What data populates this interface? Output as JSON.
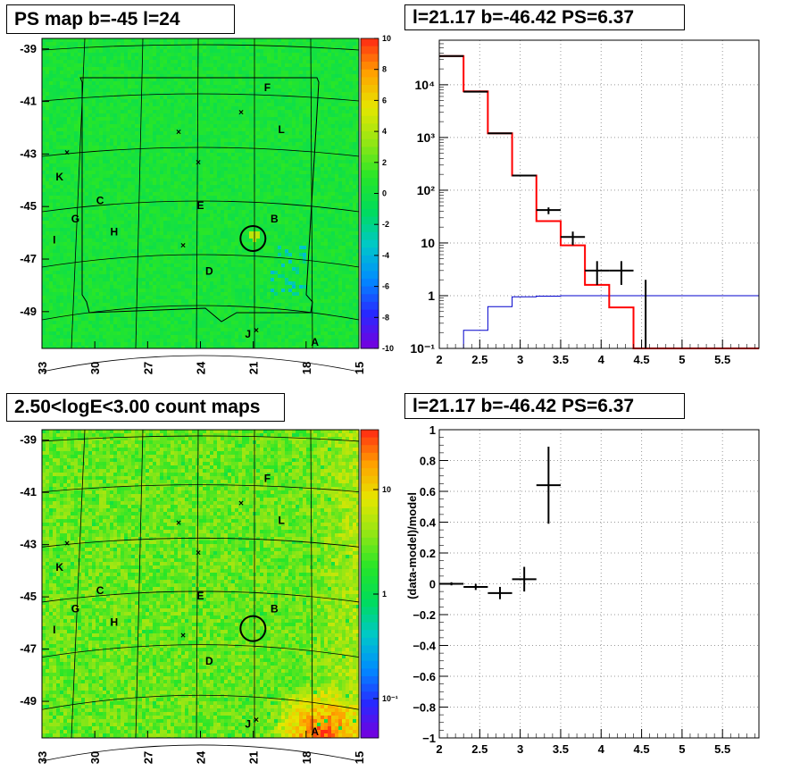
{
  "panels": {
    "map1": {
      "title": "PS map b=-45 l=24",
      "yticks": [
        "-39",
        "-41",
        "-43",
        "-45",
        "-47",
        "-49"
      ],
      "xticks": [
        "33",
        "30",
        "27",
        "24",
        "21",
        "18",
        "15"
      ],
      "colorbar_ticks": [
        "10",
        "8",
        "6",
        "4",
        "2",
        "0",
        "-2",
        "-4",
        "-6",
        "-8",
        "-10"
      ]
    },
    "map2": {
      "title": "2.50<logE<3.00 count maps",
      "yticks": [
        "-39",
        "-41",
        "-43",
        "-45",
        "-47",
        "-49"
      ],
      "xticks": [
        "33",
        "30",
        "27",
        "24",
        "21",
        "18",
        "15"
      ],
      "colorbar_ticks": [
        "10",
        "1",
        "10⁻¹"
      ]
    },
    "spectrum": {
      "title": "l=21.17 b=-46.42 PS=6.37"
    },
    "residual": {
      "title": "l=21.17 b=-46.42 PS=6.37"
    }
  },
  "source_labels": [
    "F",
    "L",
    "K",
    "C",
    "E",
    "B",
    "G",
    "H",
    "I",
    "D",
    "J",
    "A"
  ],
  "colors": {
    "data": "#000000",
    "model": "#ff0000",
    "background": "#0000cc",
    "grid": "#aaaaaa"
  },
  "chart_data": [
    {
      "type": "heatmap",
      "title": "PS map b=-45 l=24",
      "xlabel": "",
      "ylabel": "",
      "xlim": [
        33,
        15
      ],
      "ylim": [
        -50.4,
        -38.6
      ],
      "zlim": [
        -10,
        10
      ],
      "sources": [
        {
          "label": "F",
          "l": 20.2,
          "b": -40.6
        },
        {
          "label": "L",
          "l": 19.4,
          "b": -42.2
        },
        {
          "label": "K",
          "l": 32.0,
          "b": -44.0
        },
        {
          "label": "C",
          "l": 29.7,
          "b": -44.9
        },
        {
          "label": "E",
          "l": 24.0,
          "b": -45.1
        },
        {
          "label": "B",
          "l": 19.8,
          "b": -45.6
        },
        {
          "label": "G",
          "l": 31.1,
          "b": -45.6
        },
        {
          "label": "H",
          "l": 28.9,
          "b": -46.1
        },
        {
          "label": "I",
          "l": 32.3,
          "b": -46.4
        },
        {
          "label": "D",
          "l": 23.5,
          "b": -47.6
        },
        {
          "label": "J",
          "l": 21.3,
          "b": -50.0
        },
        {
          "label": "A",
          "l": 17.5,
          "b": -50.3
        }
      ]
    },
    {
      "type": "bar",
      "title": "l=21.17 b=-46.42 PS=6.37",
      "xlabel": "",
      "ylabel": "",
      "xlim": [
        2,
        6
      ],
      "ylim": [
        0.1,
        70000
      ],
      "ylog": true,
      "grid": true,
      "bin_edges": [
        2.0,
        2.3,
        2.6,
        2.9,
        3.2,
        3.5,
        3.8,
        4.1,
        4.4,
        6.0
      ],
      "series": [
        {
          "values": [
            35000,
            7500,
            1200,
            190,
            26,
            9,
            1.6,
            0.6,
            0.1
          ]
        },
        {
          "values": [
            0.1,
            0.22,
            0.62,
            0.95,
            0.98,
            1.0,
            1.0,
            1.0,
            1.0
          ]
        }
      ],
      "points": [
        {
          "x": 2.15,
          "y": 35000,
          "xerr": 0.15,
          "yerr": 0
        },
        {
          "x": 2.45,
          "y": 7400,
          "xerr": 0.15,
          "yerr": 0
        },
        {
          "x": 2.75,
          "y": 1200,
          "xerr": 0.15,
          "yerr": 0
        },
        {
          "x": 3.05,
          "y": 190,
          "xerr": 0.15,
          "yerr": 0
        },
        {
          "x": 3.35,
          "y": 42,
          "xerr": 0.15,
          "yerr": 0.1
        },
        {
          "x": 3.65,
          "y": 13,
          "xerr": 0.15,
          "yerr": 0.2
        },
        {
          "x": 3.95,
          "y": 3,
          "xerr": 0.15,
          "yerr": 0.35
        },
        {
          "x": 4.25,
          "y": 3,
          "xerr": 0.15,
          "yerr": 0.35
        },
        {
          "x": 4.55,
          "y": 0.1,
          "xerr": 0,
          "yerr": 1.0
        }
      ]
    },
    {
      "type": "heatmap",
      "title": "2.50<logE<3.00 count maps",
      "xlabel": "",
      "ylabel": "",
      "xlim": [
        33,
        15
      ],
      "ylim": [
        -50.4,
        -38.6
      ],
      "zlim": [
        0.05,
        50
      ],
      "zlog": true
    },
    {
      "type": "scatter",
      "title": "l=21.17 b=-46.42 PS=6.37",
      "xlabel": "",
      "ylabel": "(data-model)/model",
      "xlim": [
        2,
        6
      ],
      "ylim": [
        -1,
        1
      ],
      "grid": true,
      "points": [
        {
          "x": 2.15,
          "y": 0.0,
          "xerr": 0.15,
          "yerr": 0.01
        },
        {
          "x": 2.45,
          "y": -0.02,
          "xerr": 0.15,
          "yerr": 0.02
        },
        {
          "x": 2.75,
          "y": -0.06,
          "xerr": 0.15,
          "yerr": 0.04
        },
        {
          "x": 3.05,
          "y": 0.03,
          "xerr": 0.15,
          "yerr": 0.08
        },
        {
          "x": 3.35,
          "y": 0.64,
          "xerr": 0.15,
          "yerr": 0.25
        }
      ]
    }
  ]
}
